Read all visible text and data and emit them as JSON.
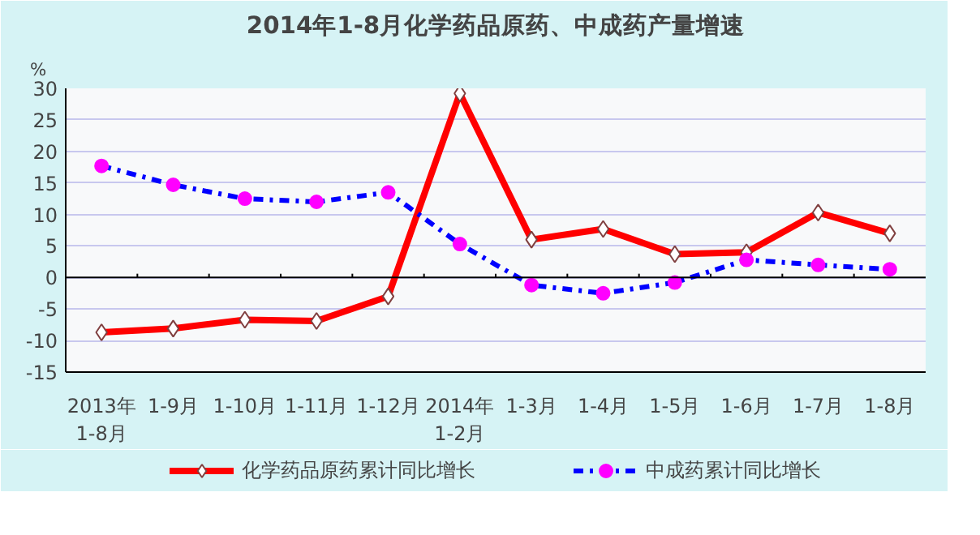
{
  "chart_data": {
    "type": "line",
    "title": "2014年1-8月化学药品原药、中成药产量增速",
    "ylabel": "%",
    "categories": [
      "2013年\n1-8月",
      "1-9月",
      "1-10月",
      "1-11月",
      "1-12月",
      "2014年\n1-2月",
      "1-3月",
      "1-4月",
      "1-5月",
      "1-6月",
      "1-7月",
      "1-8月"
    ],
    "series": [
      {
        "name": "化学药品原药累计同比增长",
        "color": "#ff0000",
        "marker": "diamond",
        "line_style": "solid",
        "values": [
          -8.7,
          -8.1,
          -6.7,
          -6.9,
          -3.0,
          29.2,
          6.0,
          7.7,
          3.7,
          4.0,
          10.3,
          7.0
        ]
      },
      {
        "name": "中成药累计同比增长",
        "color": "#0000ff",
        "marker": "circle",
        "line_style": "dashdot",
        "values": [
          17.7,
          14.7,
          12.5,
          12.0,
          13.5,
          5.3,
          -1.2,
          -2.5,
          -0.8,
          2.8,
          2.0,
          1.3
        ]
      }
    ],
    "ylim": [
      -15,
      30
    ],
    "yticks": [
      -15,
      -10,
      -5,
      0,
      5,
      10,
      15,
      20,
      25,
      30
    ],
    "grid": "y",
    "legend": "bottom"
  }
}
